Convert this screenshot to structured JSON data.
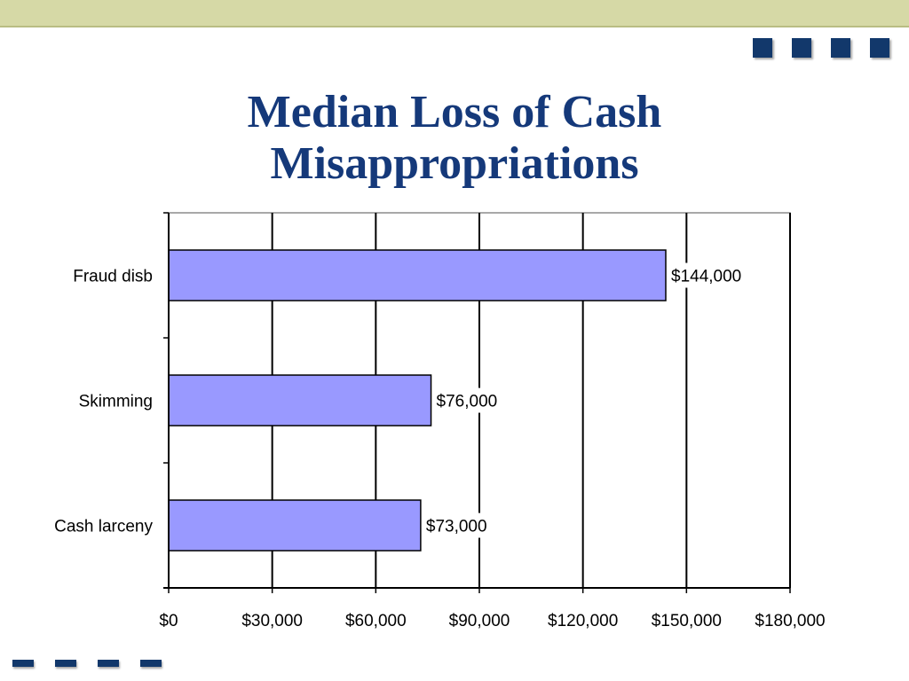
{
  "slide": {
    "title_lines": [
      "Median Loss of Cash",
      "Misappropriations"
    ],
    "colors": {
      "band": "#d6d9a6",
      "accent": "#12386b",
      "title": "#15397a"
    }
  },
  "chart_data": {
    "type": "bar",
    "orientation": "horizontal",
    "title": "Median Loss of Cash Misappropriations",
    "categories": [
      "Fraud disb",
      "Skimming",
      "Cash larceny"
    ],
    "values": [
      144000,
      76000,
      73000
    ],
    "data_labels": [
      "$144,000",
      "$76,000",
      "$73,000"
    ],
    "xlim": [
      0,
      180000
    ],
    "x_ticks": [
      0,
      30000,
      60000,
      90000,
      120000,
      150000,
      180000
    ],
    "x_tick_labels": [
      "$0",
      "$30,000",
      "$60,000",
      "$90,000",
      "$120,000",
      "$150,000",
      "$180,000"
    ],
    "grid": "vertical",
    "legend": "none",
    "bar_color": "#9999ff"
  }
}
